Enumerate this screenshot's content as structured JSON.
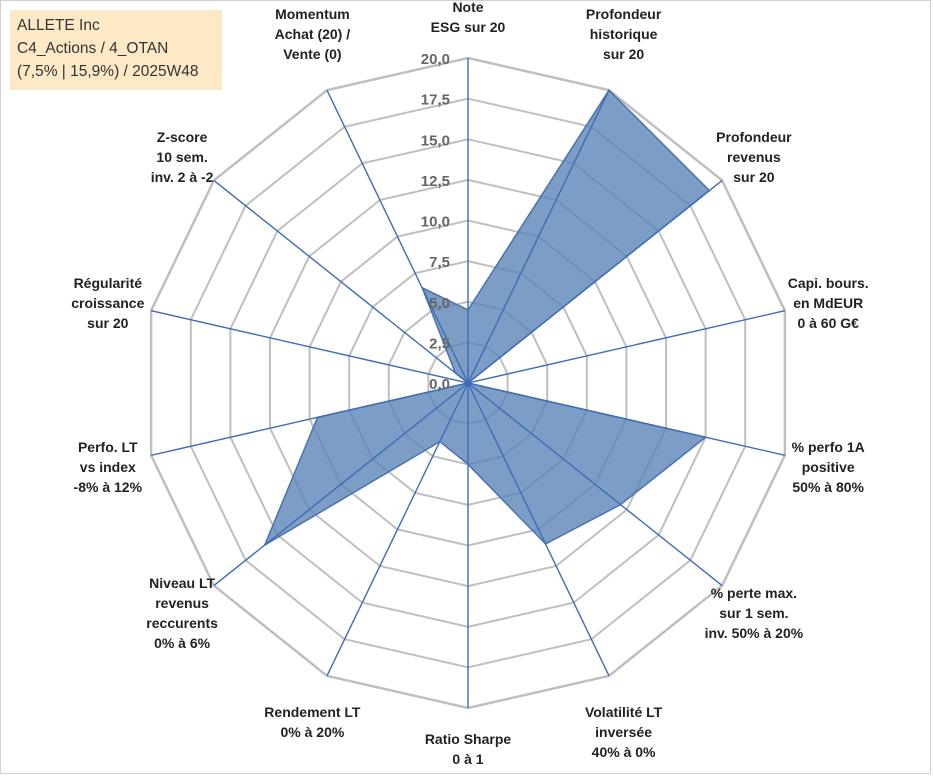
{
  "header": {
    "line1": "ALLETE Inc",
    "line2": "C4_Actions / 4_OTAN",
    "line3": "(7,5% | 15,9%) / 2025W48"
  },
  "colors": {
    "fill": "#5a84b8",
    "fill_opacity": 0.8,
    "stroke": "#4a72ad",
    "spoke": "#3f6cb5",
    "grid": "#bfbfbf",
    "box": "#fde9c6"
  },
  "chart_data": {
    "type": "radar",
    "rmax": 20,
    "tick_step": 2.5,
    "ticks": [
      "0,0",
      "2,5",
      "5,0",
      "7,5",
      "10,0",
      "12,5",
      "15,0",
      "17,5",
      "20,0"
    ],
    "grid": true,
    "axes": [
      [
        "Note",
        "ESG sur 20"
      ],
      [
        "Profondeur",
        "historique",
        "sur 20"
      ],
      [
        "Profondeur",
        "revenus",
        "sur 20"
      ],
      [
        "Capi. bours.",
        "en MdEUR",
        "0 à 60 G€"
      ],
      [
        "% perfo 1A",
        "positive",
        "50% à 80%"
      ],
      [
        "% perte max.",
        "sur 1 sem.",
        "inv. 50% à 20%"
      ],
      [
        "Volatilité LT",
        "inversée",
        "40% à 0%"
      ],
      [
        "Ratio Sharpe",
        "0 à 1"
      ],
      [
        "Rendement LT",
        "0% à 20%"
      ],
      [
        "Niveau LT",
        "revenus",
        "reccurents",
        "0% à 6%"
      ],
      [
        "Perfo. LT",
        "vs index",
        "-8% à 12%"
      ],
      [
        "Régularité",
        "croissance",
        "sur 20"
      ],
      [
        "Z-score",
        "10 sem.",
        "inv. 2 à -2"
      ],
      [
        "Momentum",
        "Achat (20) /",
        "Vente (0)"
      ]
    ],
    "values": [
      4.5,
      20,
      19,
      0,
      15,
      12,
      11,
      5,
      4,
      16,
      9.5,
      0,
      1,
      6.5
    ]
  }
}
